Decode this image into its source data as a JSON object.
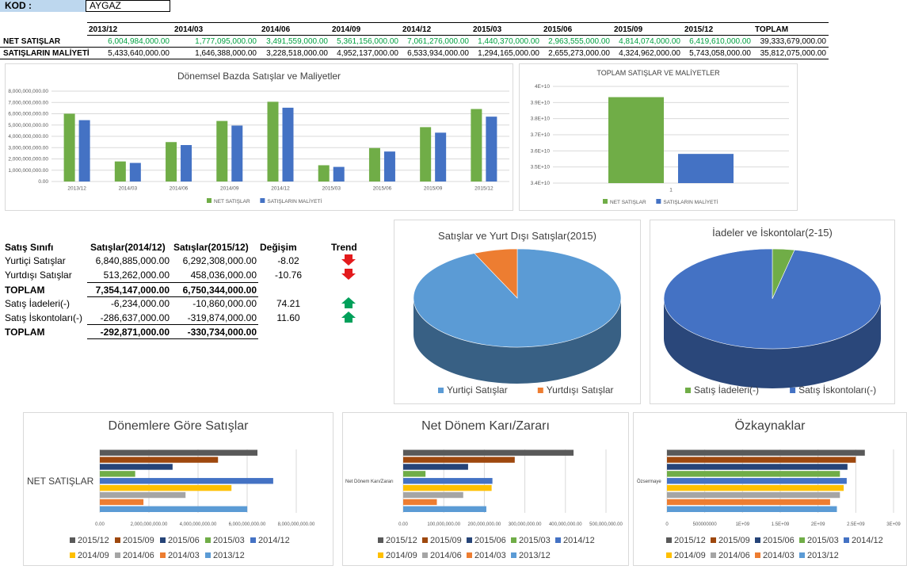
{
  "kod": {
    "label": "KOD :",
    "value": "AYGAZ"
  },
  "top_table": {
    "periods": [
      "2013/12",
      "2014/03",
      "2014/06",
      "2014/09",
      "2014/12",
      "2015/03",
      "2015/06",
      "2015/09",
      "2015/12",
      "TOPLAM"
    ],
    "rows": [
      {
        "label": "NET SATIŞLAR",
        "values": [
          "6,004,984,000.00",
          "1,777,095,000.00",
          "3,491,559,000.00",
          "5,361,156,000.00",
          "7,061,276,000.00",
          "1,440,370,000.00",
          "2,963,555,000.00",
          "4,814,074,000.00",
          "6,419,610,000.00",
          "39,333,679,000.00"
        ]
      },
      {
        "label": "SATIŞLARIN MALİYETİ",
        "values": [
          "5,433,640,000.00",
          "1,646,388,000.00",
          "3,228,518,000.00",
          "4,952,137,000.00",
          "6,533,934,000.00",
          "1,294,165,000.00",
          "2,655,273,000.00",
          "4,324,962,000.00",
          "5,743,058,000.00",
          "35,812,075,000.00"
        ]
      }
    ]
  },
  "colors": {
    "green": "#70ad47",
    "blue": "#4472c4",
    "lightblue": "#5b9bd5",
    "orange": "#ed7d31",
    "gray": "#a5a5a5",
    "yellow": "#ffc000",
    "darkgray": "#595959",
    "brown": "#9e480e",
    "navy": "#264478",
    "midgreen": "#43a047",
    "arrow_red": "#e31a1c",
    "arrow_green": "#00a05a"
  },
  "summary": {
    "headers": [
      "Satış Sınıfı",
      "Satışlar(2014/12)",
      "Satışlar(2015/12)",
      "Değişim",
      "Trend"
    ],
    "rows": [
      {
        "label": "Yurtiçi Satışlar",
        "v1": "6,840,885,000.00",
        "v2": "6,292,308,000.00",
        "change": "-8.02",
        "trend": "down",
        "bold": false
      },
      {
        "label": "Yurtdışı Satışlar",
        "v1": "513,262,000.00",
        "v2": "458,036,000.00",
        "change": "-10.76",
        "trend": "down",
        "bold": false
      },
      {
        "label": "TOPLAM",
        "v1": "7,354,147,000.00",
        "v2": "6,750,344,000.00",
        "change": "",
        "trend": "",
        "bold": true
      },
      {
        "label": "Satış İadeleri(-)",
        "v1": "-6,234,000.00",
        "v2": "-10,860,000.00",
        "change": "74.21",
        "trend": "up",
        "bold": false
      },
      {
        "label": "Satış İskontoları(-)",
        "v1": "-286,637,000.00",
        "v2": "-319,874,000.00",
        "change": "11.60",
        "trend": "up",
        "bold": false
      },
      {
        "label": "TOPLAM",
        "v1": "-292,871,000.00",
        "v2": "-330,734,000.00",
        "change": "",
        "trend": "",
        "bold": true
      }
    ]
  },
  "chart_data": [
    {
      "id": "donemsel",
      "type": "bar",
      "title": "Dönemsel Bazda Satışlar ve Maliyetler",
      "categories": [
        "2013/12",
        "2014/03",
        "2014/06",
        "2014/09",
        "2014/12",
        "2015/03",
        "2015/06",
        "2015/09",
        "2015/12"
      ],
      "series": [
        {
          "name": "NET SATIŞLAR",
          "color": "#70ad47",
          "values": [
            6004984000,
            1777095000,
            3491559000,
            5361156000,
            7061276000,
            1440370000,
            2963555000,
            4814074000,
            6419610000
          ]
        },
        {
          "name": "SATIŞLARIN MALİYETİ",
          "color": "#4472c4",
          "values": [
            5433640000,
            1646388000,
            3228518000,
            4952137000,
            6533934000,
            1294165000,
            2655273000,
            4324962000,
            5743058000
          ]
        }
      ],
      "ylim": [
        0,
        8000000000
      ],
      "yticks": [
        "0.00",
        "1,000,000,000.00",
        "2,000,000,000.00",
        "3,000,000,000.00",
        "4,000,000,000.00",
        "5,000,000,000.00",
        "6,000,000,000.00",
        "7,000,000,000.00",
        "8,000,000,000.00"
      ],
      "grid": true,
      "legend": "bottom"
    },
    {
      "id": "toplam",
      "type": "bar",
      "title": "TOPLAM SATIŞLAR VE MALİYETLER",
      "categories": [
        "1"
      ],
      "series": [
        {
          "name": "NET SATIŞLAR",
          "color": "#70ad47",
          "values": [
            39333679000
          ]
        },
        {
          "name": "SATIŞLARIN MALİYETİ",
          "color": "#4472c4",
          "values": [
            35812075000
          ]
        }
      ],
      "ylim": [
        34000000000,
        40000000000
      ],
      "yticks": [
        "3.4E+10",
        "3.5E+10",
        "3.6E+10",
        "3.7E+10",
        "3.8E+10",
        "3.9E+10",
        "4E+10"
      ],
      "grid": true,
      "legend": "bottom"
    },
    {
      "id": "pie1",
      "type": "pie",
      "title": "Satışlar ve Yurt Dışı Satışlar(2015)",
      "labels": [
        "Yurtiçi Satışlar",
        "Yurtdışı Satışlar"
      ],
      "values": [
        6292308000,
        458036000
      ],
      "colors": [
        "#5b9bd5",
        "#ed7d31"
      ],
      "legend": "bottom"
    },
    {
      "id": "pie2",
      "type": "pie",
      "title": "İadeler ve İskontolar(2-15)",
      "labels": [
        "Satış İadeleri(-)",
        "Satış İskontoları(-)"
      ],
      "values": [
        10860000,
        319874000
      ],
      "colors": [
        "#70ad47",
        "#4472c4"
      ],
      "legend": "bottom"
    },
    {
      "id": "donemlere",
      "type": "bar",
      "orientation": "horizontal",
      "title": "Dönemlere Göre Satışlar",
      "category_label": "NET SATIŞLAR",
      "series": [
        {
          "name": "2015/12",
          "color": "#595959",
          "value": 6419610000
        },
        {
          "name": "2015/09",
          "color": "#9e480e",
          "value": 4814074000
        },
        {
          "name": "2015/06",
          "color": "#264478",
          "value": 2963555000
        },
        {
          "name": "2015/03",
          "color": "#70ad47",
          "value": 1440370000
        },
        {
          "name": "2014/12",
          "color": "#4472c4",
          "value": 7061276000
        },
        {
          "name": "2014/09",
          "color": "#ffc000",
          "value": 5361156000
        },
        {
          "name": "2014/06",
          "color": "#a5a5a5",
          "value": 3491559000
        },
        {
          "name": "2014/03",
          "color": "#ed7d31",
          "value": 1777095000
        },
        {
          "name": "2013/12",
          "color": "#5b9bd5",
          "value": 6004984000
        }
      ],
      "xlim": [
        0,
        8000000000
      ],
      "xticks": [
        "0.00",
        "2,000,000,000.00",
        "4,000,000,000.00",
        "6,000,000,000.00",
        "8,000,000,000.00"
      ],
      "legend": "bottom"
    },
    {
      "id": "netkar",
      "type": "bar",
      "orientation": "horizontal",
      "title": "Net Dönem Karı/Zararı",
      "category_label": "Net Dönem Karı/Zararı",
      "series": [
        {
          "name": "2015/12",
          "color": "#595959",
          "value": 420000000
        },
        {
          "name": "2015/09",
          "color": "#9e480e",
          "value": 275000000
        },
        {
          "name": "2015/06",
          "color": "#264478",
          "value": 160000000
        },
        {
          "name": "2015/03",
          "color": "#70ad47",
          "value": 55000000
        },
        {
          "name": "2014/12",
          "color": "#4472c4",
          "value": 220000000
        },
        {
          "name": "2014/09",
          "color": "#ffc000",
          "value": 218000000
        },
        {
          "name": "2014/06",
          "color": "#a5a5a5",
          "value": 148000000
        },
        {
          "name": "2014/03",
          "color": "#ed7d31",
          "value": 83000000
        },
        {
          "name": "2013/12",
          "color": "#5b9bd5",
          "value": 205000000
        }
      ],
      "xlim": [
        0,
        500000000
      ],
      "xticks": [
        "0.00",
        "100,000,000.00",
        "200,000,000.00",
        "300,000,000.00",
        "400,000,000.00",
        "500,000,000.00"
      ],
      "legend": "bottom"
    },
    {
      "id": "ozkaynak",
      "type": "bar",
      "orientation": "horizontal",
      "title": "Özkaynaklar",
      "category_label": "Özsermaye",
      "series": [
        {
          "name": "2015/12",
          "color": "#595959",
          "value": 2620000000
        },
        {
          "name": "2015/09",
          "color": "#9e480e",
          "value": 2500000000
        },
        {
          "name": "2015/06",
          "color": "#264478",
          "value": 2390000000
        },
        {
          "name": "2015/03",
          "color": "#70ad47",
          "value": 2290000000
        },
        {
          "name": "2014/12",
          "color": "#4472c4",
          "value": 2380000000
        },
        {
          "name": "2014/09",
          "color": "#ffc000",
          "value": 2340000000
        },
        {
          "name": "2014/06",
          "color": "#a5a5a5",
          "value": 2290000000
        },
        {
          "name": "2014/03",
          "color": "#ed7d31",
          "value": 2160000000
        },
        {
          "name": "2013/12",
          "color": "#5b9bd5",
          "value": 2250000000
        }
      ],
      "xlim": [
        0,
        3000000000
      ],
      "xticks": [
        "0",
        "500000000",
        "1E+09",
        "1.5E+09",
        "2E+09",
        "2.5E+09",
        "3E+09"
      ],
      "legend": "bottom"
    }
  ]
}
